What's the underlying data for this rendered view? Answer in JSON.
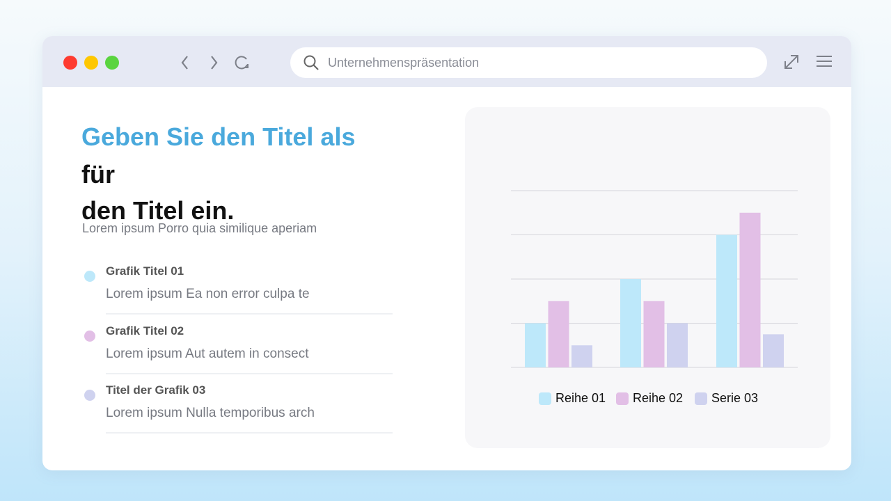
{
  "browser": {
    "search_text": "Unternehmenspräsentation",
    "icons": [
      "close-dot",
      "minimize-dot",
      "maximize-dot",
      "chevron-left-icon",
      "chevron-right-icon",
      "reload-icon",
      "search-icon",
      "expand-icon",
      "menu-icon"
    ],
    "dot_colors": [
      "#fe3b30",
      "#fec700",
      "#5ad43f"
    ]
  },
  "content": {
    "title_line1": "Geben Sie den Titel als",
    "title_line2": "für",
    "title_line3": "den Titel ein.",
    "subtitle": "Lorem ipsum Porro quia similique aperiam",
    "items": [
      {
        "title": "Grafik Titel 01",
        "desc": "Lorem ipsum Ea non error culpa te",
        "color": "#bde8fa"
      },
      {
        "title": "Grafik Titel 02",
        "desc": "Lorem ipsum Aut autem in consect",
        "color": "#e2bfe6"
      },
      {
        "title": "Titel der Grafik 03",
        "desc": "Lorem ipsum Nulla temporibus arch",
        "color": "#cfd2ef"
      }
    ]
  },
  "chart_data": {
    "type": "bar",
    "categories": [
      "",
      "",
      ""
    ],
    "series": [
      {
        "name": "Reihe 01",
        "values": [
          1,
          2,
          3
        ],
        "color": "#bde8fa"
      },
      {
        "name": "Reihe 02",
        "values": [
          1.5,
          1.5,
          3.5
        ],
        "color": "#e2bfe6"
      },
      {
        "name": "Serie 03",
        "values": [
          0.5,
          1,
          0.75
        ],
        "color": "#cfd2ef"
      }
    ],
    "ylim": [
      0,
      4
    ],
    "grid": true,
    "legend": "bottom",
    "axis_labels_shown": false
  }
}
